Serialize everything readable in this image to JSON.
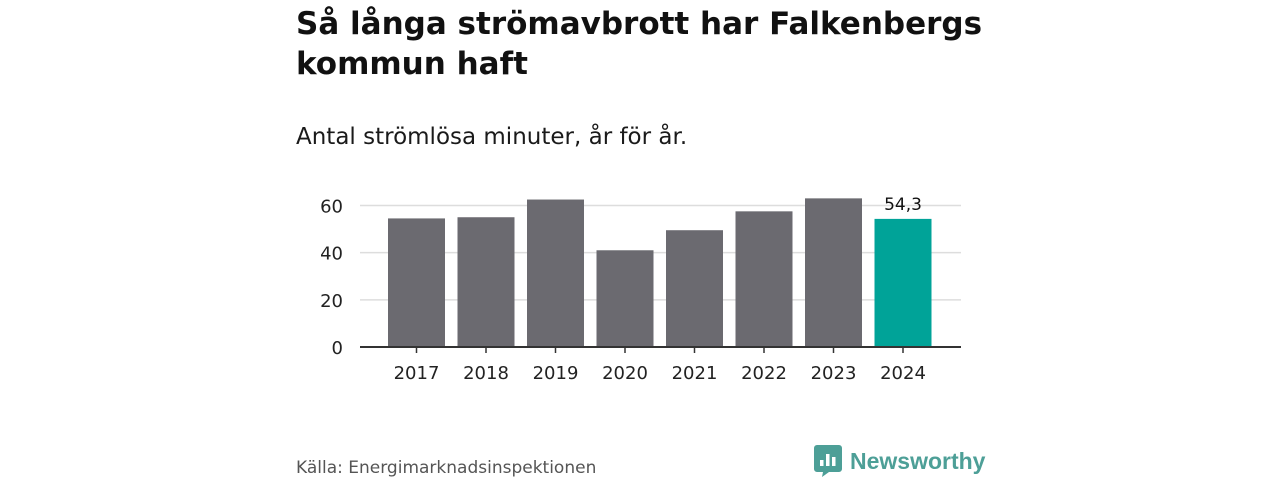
{
  "title": "Så långa strömavbrott har Falkenbergs kommun haft",
  "subtitle": "Antal strömlösa minuter, år för år.",
  "source": "Källa: Energimarknadsinspektionen",
  "brand": {
    "name": "Newsworthy",
    "icon": "newsworthy-logo-icon",
    "color": "#4d9f97"
  },
  "colors": {
    "bar": "#6b6a70",
    "highlight": "#00a398",
    "grid": "#dddddd",
    "axis": "#333333"
  },
  "chart_data": {
    "type": "bar",
    "title": "Så långa strömavbrott har Falkenbergs kommun haft",
    "subtitle": "Antal strömlösa minuter, år för år.",
    "xlabel": "",
    "ylabel": "",
    "categories": [
      "2017",
      "2018",
      "2019",
      "2020",
      "2021",
      "2022",
      "2023",
      "2024"
    ],
    "values": [
      54.5,
      55,
      62.5,
      41,
      49.5,
      57.5,
      63,
      54.3
    ],
    "highlight_index": 7,
    "data_labels": [
      {
        "index": 7,
        "text": "54,3"
      }
    ],
    "ylim": [
      0,
      64
    ],
    "yticks": [
      0,
      20,
      40,
      60
    ],
    "grid": true
  }
}
